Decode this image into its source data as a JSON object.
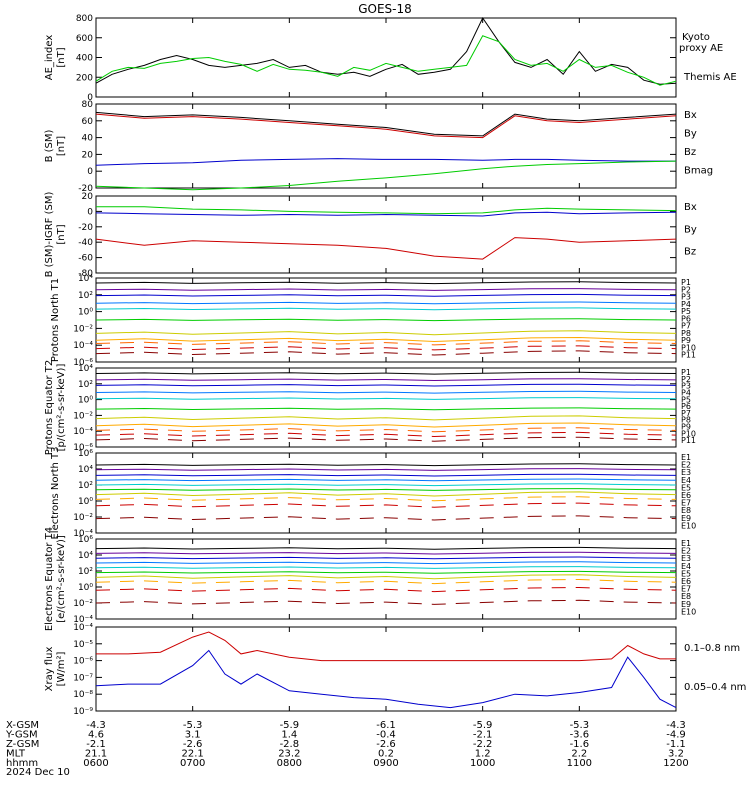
{
  "title": "GOES-18",
  "date": "2024 Dec 10",
  "chart_data": [
    {
      "type": "line",
      "ylabel": "AE_index [nT]",
      "yticks": [
        "800",
        "600",
        "400",
        "200",
        "0"
      ],
      "legend": [
        {
          "label": "Kyoto proxy AE",
          "color": "#00cc00"
        },
        {
          "label": "Themis AE",
          "color": "#000000"
        }
      ],
      "x": [
        0,
        10,
        20,
        30,
        40,
        50,
        60,
        70,
        80,
        90,
        100,
        110,
        120,
        130,
        140,
        150,
        160,
        170,
        180,
        190,
        200,
        210,
        220,
        230,
        240,
        250,
        260,
        270,
        280,
        290,
        300,
        310,
        320,
        330,
        340,
        350,
        360
      ],
      "series": [
        {
          "name": "Themis AE",
          "color": "#000000",
          "values": [
            140,
            230,
            280,
            320,
            380,
            420,
            380,
            320,
            300,
            320,
            340,
            380,
            300,
            320,
            250,
            230,
            250,
            210,
            280,
            330,
            230,
            250,
            280,
            460,
            800,
            560,
            350,
            300,
            380,
            230,
            460,
            260,
            330,
            300,
            170,
            130,
            140
          ]
        },
        {
          "name": "Kyoto proxy AE",
          "color": "#00cc00",
          "values": [
            160,
            260,
            300,
            290,
            340,
            360,
            390,
            400,
            360,
            330,
            260,
            330,
            280,
            270,
            250,
            210,
            300,
            270,
            340,
            300,
            260,
            280,
            300,
            320,
            620,
            560,
            380,
            320,
            340,
            260,
            380,
            300,
            320,
            250,
            200,
            120,
            160
          ]
        }
      ]
    },
    {
      "type": "line",
      "ylabel": "B (SM) [nT]",
      "yticks": [
        "80",
        "60",
        "40",
        "20",
        "0",
        "-20"
      ],
      "legend": [
        {
          "label": "Bx",
          "color": "#0000cc"
        },
        {
          "label": "By",
          "color": "#00cc00"
        },
        {
          "label": "Bz",
          "color": "#cc0000"
        },
        {
          "label": "Bmag",
          "color": "#000000"
        }
      ],
      "x": [
        0,
        30,
        60,
        90,
        120,
        150,
        180,
        210,
        240,
        260,
        280,
        300,
        330,
        360
      ],
      "series": [
        {
          "name": "Bx",
          "color": "#0000cc",
          "values": [
            7,
            9,
            10,
            13,
            14,
            15,
            14,
            14,
            13,
            14,
            14,
            13,
            12,
            12
          ]
        },
        {
          "name": "By",
          "color": "#00cc00",
          "values": [
            -18,
            -20,
            -22,
            -20,
            -17,
            -12,
            -8,
            -3,
            3,
            6,
            8,
            9,
            11,
            12
          ]
        },
        {
          "name": "Bz",
          "color": "#cc0000",
          "values": [
            68,
            63,
            65,
            62,
            58,
            54,
            50,
            42,
            40,
            66,
            60,
            58,
            62,
            66
          ]
        },
        {
          "name": "Bmag",
          "color": "#000000",
          "values": [
            70,
            65,
            67,
            64,
            60,
            56,
            52,
            44,
            42,
            68,
            62,
            60,
            64,
            68
          ]
        }
      ]
    },
    {
      "type": "line",
      "ylabel": "B (SM)-IGRF (SM) [nT]",
      "yticks": [
        "20",
        "0",
        "-20",
        "-40",
        "-60",
        "-80"
      ],
      "legend": [
        {
          "label": "Bx",
          "color": "#0000cc"
        },
        {
          "label": "By",
          "color": "#00cc00"
        },
        {
          "label": "Bz",
          "color": "#cc0000"
        }
      ],
      "x": [
        0,
        30,
        60,
        90,
        120,
        150,
        180,
        210,
        240,
        260,
        280,
        300,
        330,
        360
      ],
      "series": [
        {
          "name": "Bx",
          "color": "#0000cc",
          "values": [
            -2,
            -3,
            -4,
            -5,
            -4,
            -5,
            -4,
            -5,
            -6,
            -2,
            -1,
            -3,
            -2,
            -1
          ]
        },
        {
          "name": "By",
          "color": "#00cc00",
          "values": [
            6,
            6,
            3,
            2,
            0,
            -1,
            -2,
            -3,
            -2,
            2,
            4,
            3,
            2,
            1
          ]
        },
        {
          "name": "Bz",
          "color": "#cc0000",
          "values": [
            -36,
            -44,
            -38,
            -40,
            -42,
            -44,
            -48,
            -58,
            -62,
            -34,
            -36,
            -40,
            -38,
            -36
          ]
        }
      ]
    },
    {
      "type": "line",
      "log": true,
      "ylabel": "Protons North T1",
      "ymin_exp": -6,
      "ymax_exp": 4,
      "yticks": [
        "10⁴",
        "10²",
        "10⁰",
        "10⁻²",
        "10⁻⁴",
        "10⁻⁶"
      ],
      "channels": [
        {
          "label": "P1",
          "color": "#000000",
          "value": 3.4
        },
        {
          "label": "P2",
          "color": "#660099",
          "value": 2.6
        },
        {
          "label": "P3",
          "color": "#0000cc",
          "value": 1.9
        },
        {
          "label": "P4",
          "color": "#0077ff",
          "value": 1.0
        },
        {
          "label": "P5",
          "color": "#00cccc",
          "value": 0.3
        },
        {
          "label": "P6",
          "color": "#00cc00",
          "value": -1.0
        },
        {
          "label": "P7",
          "color": "#cccc00",
          "value": -2.6
        },
        {
          "label": "P8",
          "color": "#ffaa00",
          "value": -3.4
        },
        {
          "label": "P9",
          "color": "#ff6600",
          "value": -3.8
        },
        {
          "label": "P10",
          "color": "#cc0000",
          "value": -4.4
        },
        {
          "label": "P11",
          "color": "#880000",
          "value": -5.0
        }
      ]
    },
    {
      "type": "line",
      "log": true,
      "ylabel": "Protons Equator T2 [p/(cm²-s-sr-keV)]",
      "ymin_exp": -6,
      "ymax_exp": 4,
      "yticks": [
        "10⁴",
        "10²",
        "10⁰",
        "10⁻²",
        "10⁻⁴",
        "10⁻⁶"
      ],
      "channels": [
        {
          "label": "P1",
          "color": "#000000",
          "value": 3.3
        },
        {
          "label": "P2",
          "color": "#660099",
          "value": 2.5
        },
        {
          "label": "P3",
          "color": "#0000cc",
          "value": 1.8
        },
        {
          "label": "P4",
          "color": "#0077ff",
          "value": 0.9
        },
        {
          "label": "P5",
          "color": "#00cccc",
          "value": 0.1
        },
        {
          "label": "P6",
          "color": "#00cc00",
          "value": -1.2
        },
        {
          "label": "P7",
          "color": "#cccc00",
          "value": -2.4
        },
        {
          "label": "P8",
          "color": "#ffaa00",
          "value": -3.3
        },
        {
          "label": "P9",
          "color": "#ff6600",
          "value": -3.9
        },
        {
          "label": "P10",
          "color": "#cc0000",
          "value": -4.5
        },
        {
          "label": "P11",
          "color": "#880000",
          "value": -5.1
        }
      ]
    },
    {
      "type": "line",
      "log": true,
      "ylabel": "Electrons North T3",
      "ymin_exp": -4,
      "ymax_exp": 6,
      "yticks": [
        "10⁶",
        "10⁴",
        "10²",
        "10⁰",
        "10⁻²",
        "10⁻⁴"
      ],
      "channels": [
        {
          "label": "E1",
          "color": "#000000",
          "value": 4.5
        },
        {
          "label": "E2",
          "color": "#660099",
          "value": 3.9
        },
        {
          "label": "E3",
          "color": "#0000cc",
          "value": 3.2
        },
        {
          "label": "E4",
          "color": "#0077ff",
          "value": 2.6
        },
        {
          "label": "E5",
          "color": "#00cccc",
          "value": 2.0
        },
        {
          "label": "E6",
          "color": "#00cc00",
          "value": 1.4
        },
        {
          "label": "E7",
          "color": "#cccc00",
          "value": 0.8
        },
        {
          "label": "E8",
          "color": "#ffaa00",
          "value": 0.2
        },
        {
          "label": "E9",
          "color": "#cc0000",
          "value": -0.6
        },
        {
          "label": "E10",
          "color": "#880000",
          "value": -2.2
        }
      ]
    },
    {
      "type": "line",
      "log": true,
      "ylabel": "Electrons Equator T4 [e/(cm²-s-sr-keV)]",
      "ymin_exp": -4,
      "ymax_exp": 6,
      "yticks": [
        "10⁶",
        "10⁴",
        "10²",
        "10⁰",
        "10⁻²",
        "10⁻⁴"
      ],
      "channels": [
        {
          "label": "E1",
          "color": "#000000",
          "value": 4.8
        },
        {
          "label": "E2",
          "color": "#660099",
          "value": 4.2
        },
        {
          "label": "E3",
          "color": "#0000cc",
          "value": 3.6
        },
        {
          "label": "E4",
          "color": "#0077ff",
          "value": 3.0
        },
        {
          "label": "E5",
          "color": "#00cccc",
          "value": 2.4
        },
        {
          "label": "E6",
          "color": "#00cc00",
          "value": 1.8
        },
        {
          "label": "E7",
          "color": "#cccc00",
          "value": 1.2
        },
        {
          "label": "E8",
          "color": "#ffaa00",
          "value": 0.6
        },
        {
          "label": "E9",
          "color": "#cc0000",
          "value": -0.4
        },
        {
          "label": "E10",
          "color": "#880000",
          "value": -2.0
        }
      ]
    },
    {
      "type": "line",
      "log": true,
      "ylabel": "Xray flux [W/m²]",
      "ymin_exp": -9,
      "ymax_exp": -4,
      "yticks": [
        "10⁻⁴",
        "10⁻⁵",
        "10⁻⁶",
        "10⁻⁷",
        "10⁻⁸",
        "10⁻⁹"
      ],
      "legend": [
        {
          "label": "0.1–0.8 nm",
          "color": "#cc0000"
        },
        {
          "label": "0.05–0.4 nm",
          "color": "#0000cc"
        }
      ],
      "x": [
        0,
        20,
        40,
        60,
        70,
        80,
        90,
        100,
        120,
        140,
        160,
        180,
        200,
        220,
        240,
        260,
        280,
        300,
        320,
        330,
        340,
        350,
        360
      ],
      "series": [
        {
          "name": "0.1-0.8 nm",
          "color": "#cc0000",
          "values": [
            -5.6,
            -5.6,
            -5.5,
            -4.6,
            -4.3,
            -4.8,
            -5.6,
            -5.4,
            -5.8,
            -6.0,
            -6.0,
            -6.0,
            -6.0,
            -6.0,
            -6.0,
            -6.0,
            -6.0,
            -6.0,
            -5.9,
            -5.1,
            -5.6,
            -5.9,
            -5.9
          ]
        },
        {
          "name": "0.05-0.4 nm",
          "color": "#0000cc",
          "values": [
            -7.5,
            -7.4,
            -7.4,
            -6.3,
            -5.4,
            -6.8,
            -7.4,
            -6.8,
            -7.8,
            -8.0,
            -8.2,
            -8.3,
            -8.6,
            -8.8,
            -8.5,
            -8.0,
            -8.1,
            -7.9,
            -7.6,
            -5.8,
            -7.0,
            -8.3,
            -8.8
          ]
        }
      ]
    }
  ],
  "axis": {
    "rows": [
      "X-GSM",
      "Y-GSM",
      "Z-GSM",
      "MLT",
      "hhmm"
    ],
    "columns": [
      [
        "-4.3",
        "4.6",
        "-2.1",
        "21.1",
        "0600"
      ],
      [
        "-5.3",
        "3.1",
        "-2.6",
        "22.1",
        "0700"
      ],
      [
        "-5.9",
        "1.4",
        "-2.8",
        "23.2",
        "0800"
      ],
      [
        "-6.1",
        "-0.4",
        "-2.6",
        "0.2",
        "0900"
      ],
      [
        "-5.9",
        "-2.1",
        "-2.2",
        "1.2",
        "1000"
      ],
      [
        "-5.3",
        "-3.6",
        "-1.6",
        "2.2",
        "1100"
      ],
      [
        "-4.3",
        "-4.9",
        "-1.1",
        "3.2",
        "1200"
      ]
    ]
  }
}
